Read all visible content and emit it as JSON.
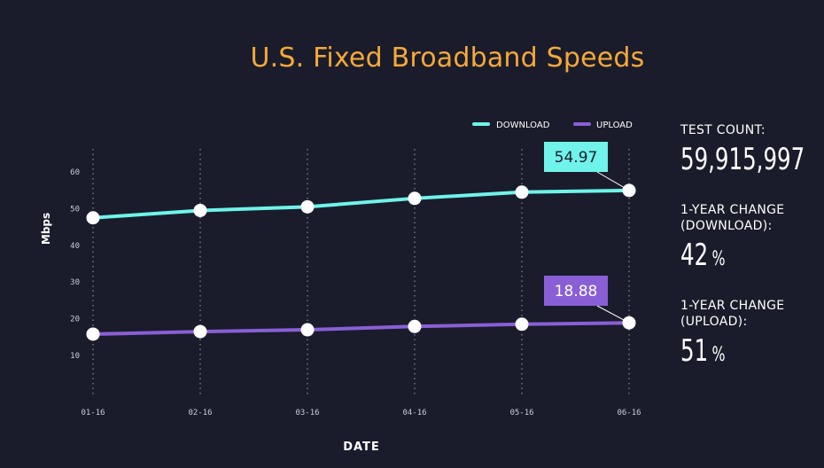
{
  "title": "U.S. Fixed Broadband Speeds",
  "colors": {
    "background": "#1a1c2b",
    "title": "#f5a83a",
    "download": "#6ff3ea",
    "upload": "#8a5fd6",
    "marker": "#ffffff",
    "grid": "#9aa0b0",
    "tick_text": "#c9ccd6"
  },
  "legend": {
    "download": "DOWNLOAD",
    "upload": "UPLOAD"
  },
  "stats": {
    "test_count_label": "TEST COUNT:",
    "test_count_value": "59,915,997",
    "download_change_label": "1-YEAR CHANGE\n(DOWNLOAD):",
    "download_change_value": "42",
    "upload_change_label": "1-YEAR CHANGE\n(UPLOAD):",
    "upload_change_value": "51",
    "percent_sign": "%"
  },
  "chart_data": {
    "type": "line",
    "xlabel": "DATE",
    "ylabel": "Mbps",
    "categories": [
      "01-16",
      "02-16",
      "03-16",
      "04-16",
      "05-16",
      "06-16"
    ],
    "yticks": [
      10,
      20,
      30,
      40,
      50,
      60
    ],
    "ylim": [
      0,
      66
    ],
    "grid": "vertical dotted",
    "legend_position": "top-right",
    "series": [
      {
        "name": "DOWNLOAD",
        "values": [
          47.5,
          49.5,
          50.5,
          52.8,
          54.5,
          54.97
        ],
        "color": "#6ff3ea",
        "callout": "54.97"
      },
      {
        "name": "UPLOAD",
        "values": [
          15.8,
          16.5,
          17.0,
          17.9,
          18.5,
          18.88
        ],
        "color": "#8a5fd6",
        "callout": "18.88"
      }
    ]
  }
}
